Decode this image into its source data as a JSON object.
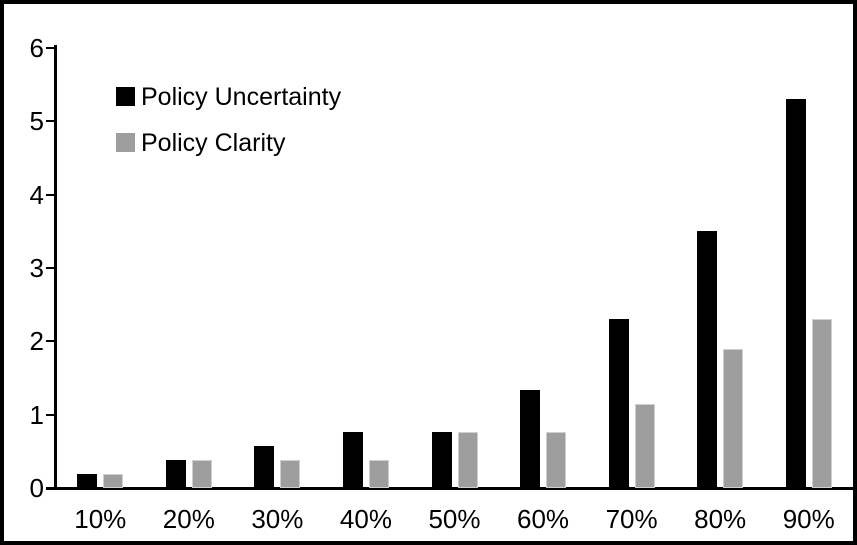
{
  "chart_data": {
    "type": "bar",
    "title": "",
    "xlabel": "",
    "ylabel": "",
    "categories": [
      "10%",
      "20%",
      "30%",
      "40%",
      "50%",
      "60%",
      "70%",
      "80%",
      "90%"
    ],
    "series": [
      {
        "name": "Policy Uncertainty",
        "color": "#000000",
        "values": [
          0.19,
          0.38,
          0.57,
          0.77,
          0.77,
          1.33,
          2.3,
          3.5,
          5.3
        ]
      },
      {
        "name": "Policy Clarity",
        "color": "#9e9e9e",
        "values": [
          0.19,
          0.38,
          0.38,
          0.38,
          0.77,
          0.77,
          1.15,
          1.9,
          2.3
        ]
      }
    ],
    "ylim": [
      0,
      6
    ],
    "yticks": [
      "0",
      "1",
      "2",
      "3",
      "4",
      "5",
      "6"
    ],
    "grid": false,
    "legend_position": "top-left",
    "axis_color": "#000000",
    "text_color": "#000000",
    "background_color": "#ffffff",
    "frame_border_color": "#000000"
  }
}
